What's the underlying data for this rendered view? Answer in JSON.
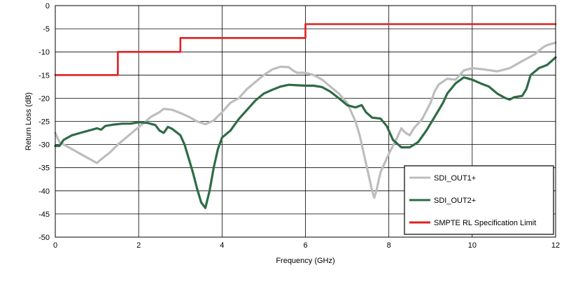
{
  "chart_data": {
    "type": "line",
    "title": "",
    "xlabel": "Frequency (GHz)",
    "ylabel": "Return Loss (dB)",
    "xlim": [
      0,
      12
    ],
    "ylim": [
      -50,
      0
    ],
    "x_ticks": [
      0,
      2,
      4,
      6,
      8,
      10,
      12
    ],
    "y_ticks": [
      0,
      -5,
      -10,
      -15,
      -20,
      -25,
      -30,
      -35,
      -40,
      -45,
      -50
    ],
    "grid": true,
    "legend_position": "bottom-right",
    "series": [
      {
        "name": "SDI_OUT1+",
        "color": "#bdbdbd",
        "points": [
          [
            0,
            -27.5
          ],
          [
            0.1,
            -29.5
          ],
          [
            0.3,
            -30.5
          ],
          [
            0.5,
            -31.5
          ],
          [
            0.7,
            -32.5
          ],
          [
            0.9,
            -33.5
          ],
          [
            1.0,
            -34.0
          ],
          [
            1.1,
            -33.2
          ],
          [
            1.3,
            -31.8
          ],
          [
            1.5,
            -30.0
          ],
          [
            1.7,
            -28.5
          ],
          [
            1.9,
            -27.0
          ],
          [
            2.1,
            -25.5
          ],
          [
            2.3,
            -24.0
          ],
          [
            2.5,
            -23.0
          ],
          [
            2.6,
            -22.3
          ],
          [
            2.8,
            -22.5
          ],
          [
            3.0,
            -23.2
          ],
          [
            3.2,
            -24.0
          ],
          [
            3.4,
            -25.0
          ],
          [
            3.6,
            -25.6
          ],
          [
            3.8,
            -24.8
          ],
          [
            4.0,
            -23.0
          ],
          [
            4.2,
            -21.0
          ],
          [
            4.4,
            -20.0
          ],
          [
            4.6,
            -18.0
          ],
          [
            4.8,
            -16.5
          ],
          [
            5.0,
            -15.0
          ],
          [
            5.2,
            -13.8
          ],
          [
            5.4,
            -13.2
          ],
          [
            5.6,
            -13.3
          ],
          [
            5.7,
            -14.0
          ],
          [
            5.8,
            -14.5
          ],
          [
            6.0,
            -14.5
          ],
          [
            6.2,
            -15.0
          ],
          [
            6.4,
            -16.0
          ],
          [
            6.6,
            -17.5
          ],
          [
            6.8,
            -19.0
          ],
          [
            7.0,
            -21.0
          ],
          [
            7.2,
            -25.0
          ],
          [
            7.3,
            -28.0
          ],
          [
            7.4,
            -32.0
          ],
          [
            7.5,
            -36.0
          ],
          [
            7.6,
            -40.0
          ],
          [
            7.65,
            -41.5
          ],
          [
            7.7,
            -40.0
          ],
          [
            7.8,
            -36.0
          ],
          [
            8.0,
            -32.0
          ],
          [
            8.2,
            -28.5
          ],
          [
            8.3,
            -26.5
          ],
          [
            8.4,
            -27.5
          ],
          [
            8.5,
            -28.0
          ],
          [
            8.6,
            -26.5
          ],
          [
            8.8,
            -24.5
          ],
          [
            9.0,
            -21.0
          ],
          [
            9.1,
            -18.5
          ],
          [
            9.2,
            -17.0
          ],
          [
            9.4,
            -15.8
          ],
          [
            9.6,
            -16.0
          ],
          [
            9.8,
            -14.0
          ],
          [
            10.0,
            -13.5
          ],
          [
            10.3,
            -13.8
          ],
          [
            10.6,
            -14.2
          ],
          [
            10.9,
            -13.5
          ],
          [
            11.2,
            -12.0
          ],
          [
            11.5,
            -10.5
          ],
          [
            11.7,
            -9.0
          ],
          [
            11.8,
            -8.5
          ],
          [
            12.0,
            -8.0
          ]
        ]
      },
      {
        "name": "SDI_OUT2+",
        "color": "#2e6b47",
        "points": [
          [
            0,
            -30.3
          ],
          [
            0.1,
            -30.3
          ],
          [
            0.2,
            -29.0
          ],
          [
            0.4,
            -28.0
          ],
          [
            0.6,
            -27.5
          ],
          [
            0.8,
            -27.0
          ],
          [
            1.0,
            -26.5
          ],
          [
            1.1,
            -26.8
          ],
          [
            1.2,
            -26.0
          ],
          [
            1.4,
            -25.7
          ],
          [
            1.6,
            -25.5
          ],
          [
            1.8,
            -25.5
          ],
          [
            2.0,
            -25.2
          ],
          [
            2.2,
            -25.3
          ],
          [
            2.4,
            -25.8
          ],
          [
            2.5,
            -27.0
          ],
          [
            2.6,
            -27.5
          ],
          [
            2.7,
            -26.2
          ],
          [
            2.8,
            -26.6
          ],
          [
            2.9,
            -27.3
          ],
          [
            3.0,
            -28.0
          ],
          [
            3.1,
            -30.0
          ],
          [
            3.2,
            -33.0
          ],
          [
            3.3,
            -36.0
          ],
          [
            3.4,
            -39.5
          ],
          [
            3.5,
            -42.5
          ],
          [
            3.6,
            -43.7
          ],
          [
            3.7,
            -40.0
          ],
          [
            3.8,
            -35.0
          ],
          [
            3.9,
            -31.0
          ],
          [
            4.0,
            -28.5
          ],
          [
            4.2,
            -27.0
          ],
          [
            4.4,
            -24.5
          ],
          [
            4.6,
            -22.5
          ],
          [
            4.8,
            -20.5
          ],
          [
            5.0,
            -19.0
          ],
          [
            5.2,
            -18.2
          ],
          [
            5.4,
            -17.5
          ],
          [
            5.6,
            -17.1
          ],
          [
            5.8,
            -17.2
          ],
          [
            6.0,
            -17.3
          ],
          [
            6.2,
            -17.3
          ],
          [
            6.4,
            -17.6
          ],
          [
            6.6,
            -18.6
          ],
          [
            6.8,
            -20.0
          ],
          [
            7.0,
            -21.5
          ],
          [
            7.2,
            -22.0
          ],
          [
            7.35,
            -21.5
          ],
          [
            7.45,
            -23.0
          ],
          [
            7.6,
            -24.2
          ],
          [
            7.8,
            -24.4
          ],
          [
            7.95,
            -26.0
          ],
          [
            8.1,
            -29.0
          ],
          [
            8.3,
            -30.6
          ],
          [
            8.5,
            -30.6
          ],
          [
            8.7,
            -29.5
          ],
          [
            8.9,
            -27.0
          ],
          [
            9.1,
            -24.0
          ],
          [
            9.3,
            -21.0
          ],
          [
            9.4,
            -19.0
          ],
          [
            9.6,
            -16.8
          ],
          [
            9.8,
            -15.5
          ],
          [
            10.0,
            -16.0
          ],
          [
            10.2,
            -16.8
          ],
          [
            10.4,
            -17.5
          ],
          [
            10.6,
            -19.0
          ],
          [
            10.8,
            -20.0
          ],
          [
            10.9,
            -20.3
          ],
          [
            11.0,
            -19.8
          ],
          [
            11.2,
            -19.5
          ],
          [
            11.3,
            -18.0
          ],
          [
            11.4,
            -15.0
          ],
          [
            11.6,
            -13.5
          ],
          [
            11.8,
            -12.8
          ],
          [
            12.0,
            -11.2
          ]
        ]
      },
      {
        "name": "SMPTE RL Specification Limit",
        "color": "#e02020",
        "points": [
          [
            0,
            -15
          ],
          [
            1.5,
            -15
          ],
          [
            1.5,
            -10
          ],
          [
            3,
            -10
          ],
          [
            3,
            -7
          ],
          [
            6,
            -7
          ],
          [
            6,
            -4
          ],
          [
            12,
            -4
          ]
        ]
      }
    ]
  }
}
